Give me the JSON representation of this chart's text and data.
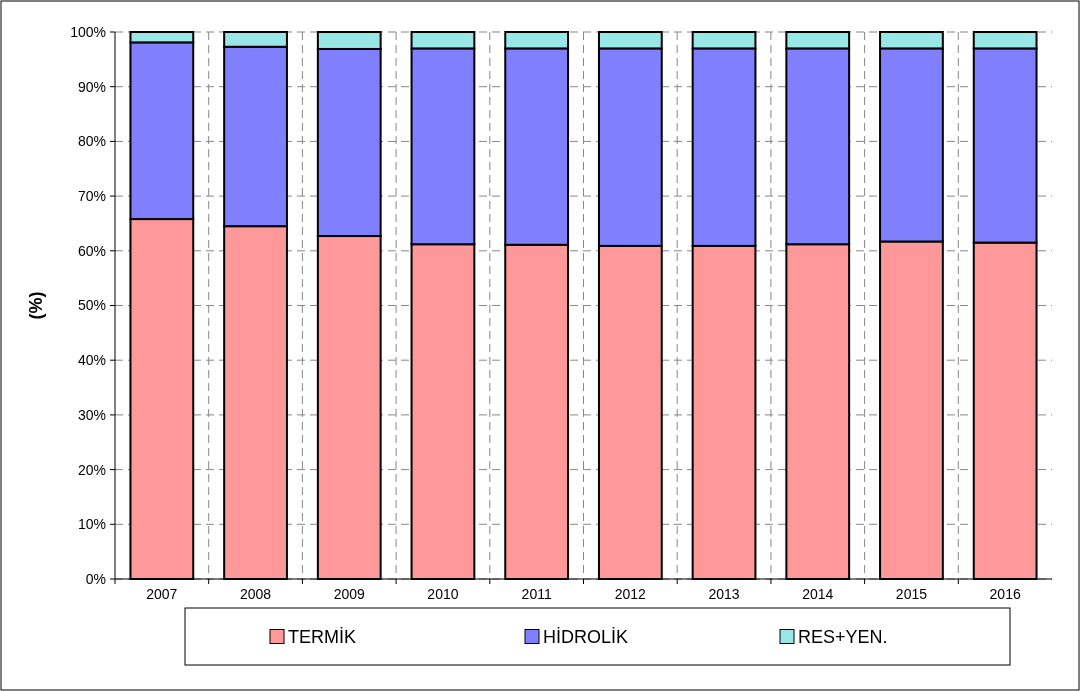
{
  "chart_data": {
    "type": "bar",
    "ylabel": "(%)",
    "categories": [
      "2007",
      "2008",
      "2009",
      "2010",
      "2011",
      "2012",
      "2013",
      "2014",
      "2015",
      "2016"
    ],
    "stacked": true,
    "ylim": [
      0,
      100
    ],
    "yticks": [
      {
        "value": 0,
        "label": "0%"
      },
      {
        "value": 10,
        "label": "10%"
      },
      {
        "value": 20,
        "label": "20%"
      },
      {
        "value": 30,
        "label": "30%"
      },
      {
        "value": 40,
        "label": "40%"
      },
      {
        "value": 50,
        "label": "50%"
      },
      {
        "value": 60,
        "label": "60%"
      },
      {
        "value": 70,
        "label": "70%"
      },
      {
        "value": 80,
        "label": "80%"
      },
      {
        "value": 90,
        "label": "90%"
      },
      {
        "value": 100,
        "label": "100%"
      }
    ],
    "grid": true,
    "legend": "bottom",
    "series": [
      {
        "name": "TERMİK",
        "color": "#ff9999",
        "values": [
          65.8,
          64.5,
          62.7,
          61.2,
          61.1,
          60.9,
          60.9,
          61.2,
          61.7,
          61.5
        ]
      },
      {
        "name": "HİDROLİK",
        "color": "#8080ff",
        "values": [
          32.3,
          32.8,
          34.2,
          35.8,
          35.9,
          36.1,
          36.1,
          35.8,
          35.3,
          35.5
        ]
      },
      {
        "name": "RES+YEN.",
        "color": "#99e6e6",
        "values": [
          1.9,
          2.7,
          3.1,
          3.0,
          3.0,
          3.0,
          3.0,
          3.0,
          3.0,
          3.0
        ]
      }
    ]
  }
}
